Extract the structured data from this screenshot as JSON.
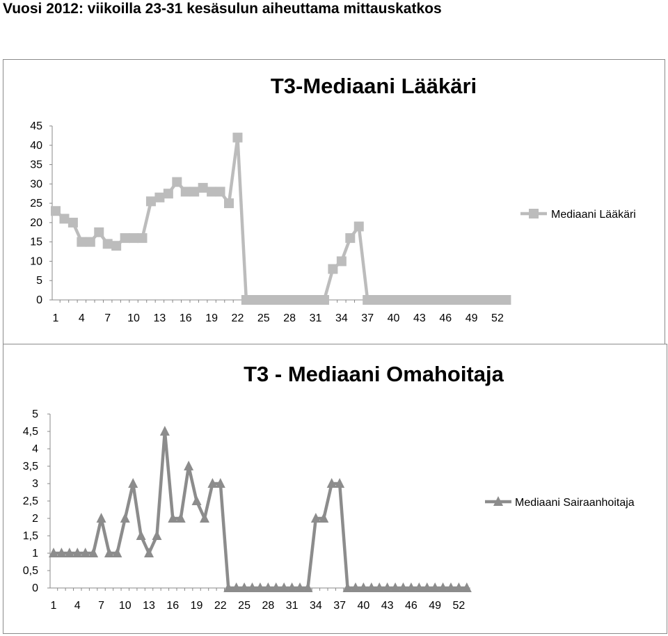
{
  "page": {
    "heading": "Vuosi 2012: viikoilla 23-31 kesäsulun aiheuttama mittauskatkos"
  },
  "chart_data": [
    {
      "type": "line",
      "title": "T3-Mediaani Lääkäri",
      "xlabel": "",
      "ylabel": "",
      "ylim": [
        0,
        45
      ],
      "yticks": [
        "0",
        "5",
        "10",
        "15",
        "20",
        "25",
        "30",
        "35",
        "40",
        "45"
      ],
      "xtick_labels": [
        "1",
        "4",
        "7",
        "10",
        "13",
        "16",
        "19",
        "22",
        "25",
        "28",
        "31",
        "34",
        "37",
        "40",
        "43",
        "46",
        "49",
        "52"
      ],
      "x": [
        1,
        2,
        3,
        4,
        5,
        6,
        7,
        8,
        9,
        10,
        11,
        12,
        13,
        14,
        15,
        16,
        17,
        18,
        19,
        20,
        21,
        22,
        23,
        24,
        25,
        26,
        27,
        28,
        29,
        30,
        31,
        32,
        33,
        34,
        35,
        36,
        37,
        38,
        39,
        40,
        41,
        42,
        43,
        44,
        45,
        46,
        47,
        48,
        49,
        50,
        51,
        52,
        53
      ],
      "series": [
        {
          "name": "Mediaani Lääkäri",
          "marker": "square",
          "color": "#bcbcbc",
          "values": [
            23,
            21,
            20,
            15,
            15,
            17.5,
            14.5,
            14,
            16,
            16,
            16,
            25.5,
            26.5,
            27.5,
            30.5,
            28,
            28,
            29,
            28,
            28,
            25,
            42,
            0,
            0,
            0,
            0,
            0,
            0,
            0,
            0,
            0,
            0,
            8,
            10,
            16,
            19,
            0,
            0,
            0,
            0,
            0,
            0,
            0,
            0,
            0,
            0,
            0,
            0,
            0,
            0,
            0,
            0,
            0
          ]
        }
      ],
      "legend": "right",
      "grid": false
    },
    {
      "type": "line",
      "title": "T3 - Mediaani Omahoitaja",
      "xlabel": "",
      "ylabel": "",
      "ylim": [
        0,
        5
      ],
      "yticks": [
        "0",
        "0,5",
        "1",
        "1,5",
        "2",
        "2,5",
        "3",
        "3,5",
        "4",
        "4,5",
        "5"
      ],
      "xtick_labels": [
        "1",
        "4",
        "7",
        "10",
        "13",
        "16",
        "19",
        "22",
        "25",
        "28",
        "31",
        "34",
        "37",
        "40",
        "43",
        "46",
        "49",
        "52"
      ],
      "x": [
        1,
        2,
        3,
        4,
        5,
        6,
        7,
        8,
        9,
        10,
        11,
        12,
        13,
        14,
        15,
        16,
        17,
        18,
        19,
        20,
        21,
        22,
        23,
        24,
        25,
        26,
        27,
        28,
        29,
        30,
        31,
        32,
        33,
        34,
        35,
        36,
        37,
        38,
        39,
        40,
        41,
        42,
        43,
        44,
        45,
        46,
        47,
        48,
        49,
        50,
        51,
        52,
        53
      ],
      "series": [
        {
          "name": "Mediaani Sairaanhoitaja",
          "marker": "triangle",
          "color": "#8c8c8c",
          "values": [
            1,
            1,
            1,
            1,
            1,
            1,
            2,
            1,
            1,
            2,
            3,
            1.5,
            1,
            1.5,
            4.5,
            2,
            2,
            3.5,
            2.5,
            2,
            3,
            3,
            0,
            0,
            0,
            0,
            0,
            0,
            0,
            0,
            0,
            0,
            0,
            2,
            2,
            3,
            3,
            0,
            0,
            0,
            0,
            0,
            0,
            0,
            0,
            0,
            0,
            0,
            0,
            0,
            0,
            0,
            0
          ]
        }
      ],
      "legend": "right",
      "grid": false
    }
  ]
}
